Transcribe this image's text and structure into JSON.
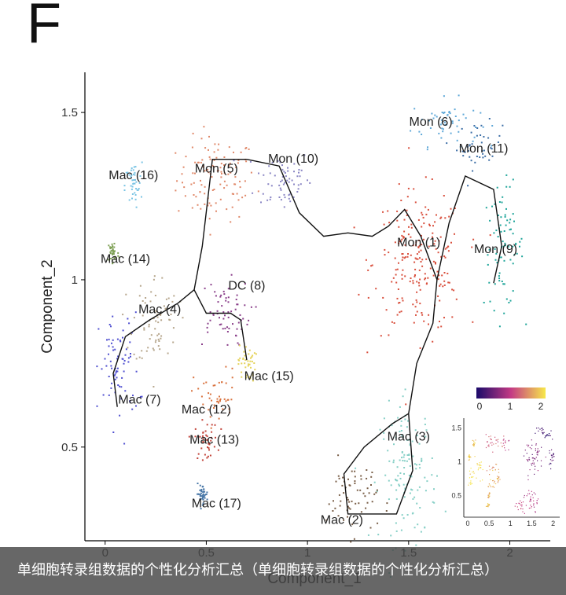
{
  "panel_letter": "F",
  "caption": "单细胞转录组数据的个性化分析汇总（单细胞转录组数据的个性化分析汇总）",
  "chart_data": {
    "type": "scatter",
    "title": "",
    "xlabel": "Component_1",
    "ylabel": "Component_2",
    "xlim": [
      -0.1,
      2.2
    ],
    "ylim": [
      0.22,
      1.62
    ],
    "xticks": [
      0,
      0.5,
      1,
      1.5,
      2
    ],
    "yticks": [
      0.5,
      1,
      1.5
    ],
    "xtick_labels": [
      "0",
      "0.5",
      "1",
      "1.5",
      "2"
    ],
    "ytick_labels": [
      "0.5",
      "1",
      "1.5"
    ],
    "grid": false,
    "clusters": [
      {
        "label": "Mon (5)",
        "color": "#e0896a",
        "center": [
          0.55,
          1.3
        ],
        "spread": [
          0.14,
          0.09
        ]
      },
      {
        "label": "Mon (10)",
        "color": "#8a86c4",
        "center": [
          0.88,
          1.3
        ],
        "spread": [
          0.1,
          0.07
        ]
      },
      {
        "label": "Mon (6)",
        "color": "#5fa8d8",
        "center": [
          1.68,
          1.47
        ],
        "spread": [
          0.12,
          0.05
        ]
      },
      {
        "label": "Mon (11)",
        "color": "#3c6ea6",
        "center": [
          1.85,
          1.4
        ],
        "spread": [
          0.08,
          0.05
        ]
      },
      {
        "label": "Mon (9)",
        "color": "#1fa59a",
        "center": [
          1.97,
          1.1
        ],
        "spread": [
          0.07,
          0.13
        ]
      },
      {
        "label": "Mon (1)",
        "color": "#d9503e",
        "center": [
          1.55,
          1.05
        ],
        "spread": [
          0.16,
          0.15
        ]
      },
      {
        "label": "Mac (16)",
        "color": "#7ac4e4",
        "center": [
          0.14,
          1.28
        ],
        "spread": [
          0.03,
          0.05
        ]
      },
      {
        "label": "Mac (14)",
        "color": "#7ea055",
        "center": [
          0.04,
          1.08
        ],
        "spread": [
          0.02,
          0.03
        ]
      },
      {
        "label": "Mac (4)",
        "color": "#b6a68c",
        "center": [
          0.25,
          0.88
        ],
        "spread": [
          0.08,
          0.1
        ]
      },
      {
        "label": "DC (8)",
        "color": "#8a3f8a",
        "center": [
          0.58,
          0.9
        ],
        "spread": [
          0.1,
          0.07
        ]
      },
      {
        "label": "Mac (15)",
        "color": "#e5d35b",
        "center": [
          0.7,
          0.75
        ],
        "spread": [
          0.03,
          0.04
        ]
      },
      {
        "label": "Mac (12)",
        "color": "#d9733f",
        "center": [
          0.55,
          0.65
        ],
        "spread": [
          0.08,
          0.06
        ]
      },
      {
        "label": "Mac (7)",
        "color": "#4f4fd0",
        "center": [
          0.07,
          0.73
        ],
        "spread": [
          0.07,
          0.12
        ]
      },
      {
        "label": "Mac (13)",
        "color": "#c2443a",
        "center": [
          0.5,
          0.52
        ],
        "spread": [
          0.04,
          0.04
        ]
      },
      {
        "label": "Mac (17)",
        "color": "#4a78a8",
        "center": [
          0.48,
          0.36
        ],
        "spread": [
          0.02,
          0.02
        ]
      },
      {
        "label": "Mac (3)",
        "color": "#86cfc6",
        "center": [
          1.5,
          0.42
        ],
        "spread": [
          0.1,
          0.15
        ]
      },
      {
        "label": "Mac (2)",
        "color": "#7a5f48",
        "center": [
          1.22,
          0.35
        ],
        "spread": [
          0.09,
          0.08
        ]
      }
    ],
    "trajectory": [
      [
        [
          0.06,
          0.62
        ],
        [
          0.04,
          0.72
        ],
        [
          0.1,
          0.83
        ],
        [
          0.22,
          0.88
        ],
        [
          0.36,
          0.93
        ],
        [
          0.44,
          0.97
        ]
      ],
      [
        [
          0.44,
          0.97
        ],
        [
          0.48,
          1.1
        ],
        [
          0.53,
          1.36
        ],
        [
          0.7,
          1.36
        ],
        [
          0.86,
          1.34
        ],
        [
          0.96,
          1.2
        ],
        [
          1.08,
          1.13
        ],
        [
          1.2,
          1.14
        ],
        [
          1.32,
          1.13
        ],
        [
          1.4,
          1.16
        ],
        [
          1.48,
          1.21
        ],
        [
          1.56,
          1.13
        ],
        [
          1.64,
          1.0
        ],
        [
          1.7,
          1.17
        ],
        [
          1.78,
          1.31
        ],
        [
          1.92,
          1.27
        ],
        [
          1.96,
          1.1
        ],
        [
          1.92,
          0.99
        ]
      ],
      [
        [
          0.44,
          0.97
        ],
        [
          0.5,
          0.9
        ],
        [
          0.62,
          0.9
        ],
        [
          0.67,
          0.88
        ],
        [
          0.7,
          0.76
        ]
      ],
      [
        [
          1.64,
          1.0
        ],
        [
          1.62,
          0.87
        ],
        [
          1.54,
          0.75
        ],
        [
          1.5,
          0.6
        ]
      ],
      [
        [
          1.5,
          0.6
        ],
        [
          1.42,
          0.57
        ],
        [
          1.28,
          0.5
        ],
        [
          1.18,
          0.42
        ],
        [
          1.2,
          0.3
        ],
        [
          1.44,
          0.3
        ],
        [
          1.52,
          0.43
        ],
        [
          1.5,
          0.6
        ]
      ]
    ],
    "inset": {
      "type": "scatter",
      "legend": "top",
      "colorbar": {
        "ticks": [
          "0",
          "1",
          "2"
        ],
        "low": "#1a0a6a",
        "mid": "#c43a84",
        "high": "#f7e84a"
      },
      "xticks": [
        "0",
        "0.5",
        "1",
        "1.5",
        "2"
      ],
      "yticks": [
        "0.5",
        "1",
        "1.5"
      ]
    }
  }
}
